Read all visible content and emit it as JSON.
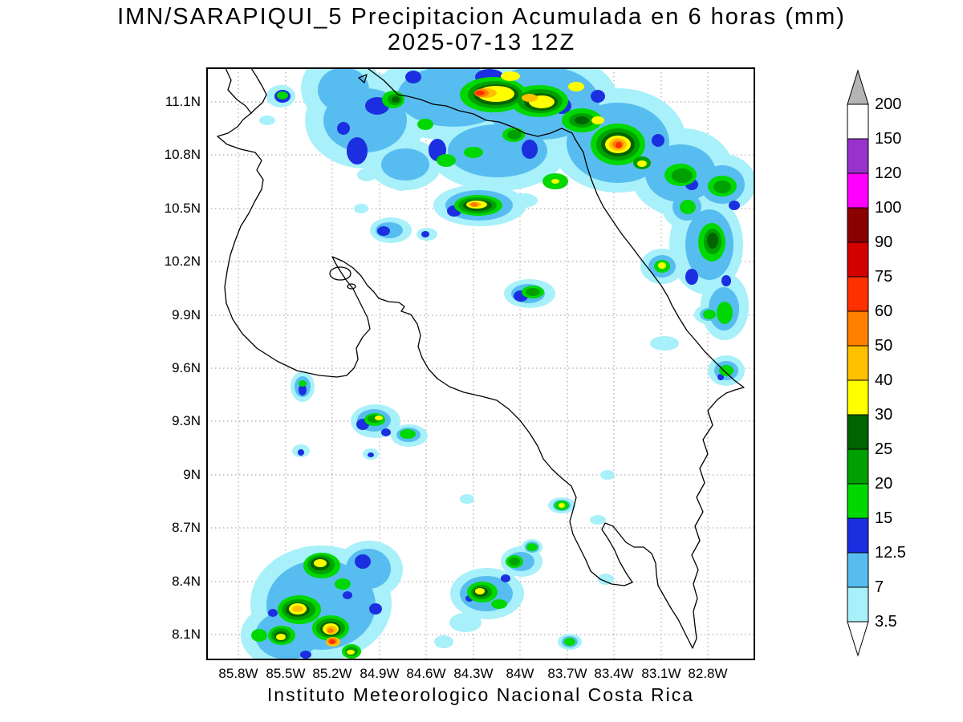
{
  "title": {
    "line1": "IMN/SARAPIQUI_5 Precipitacion Acumulada en 6 horas (mm)",
    "line2": "2025-07-13 12Z"
  },
  "footer": "Instituto Meteorologico Nacional Costa Rica",
  "chart_data": {
    "type": "heatmap",
    "subtype": "filled-contour precipitation map over Costa Rica",
    "title": "IMN/SARAPIQUI_5 Precipitacion Acumulada en 6 horas (mm)",
    "subtitle": "2025-07-13 12Z",
    "units": "mm",
    "lat_ticks": [
      "11.1N",
      "10.8N",
      "10.5N",
      "10.2N",
      "9.9N",
      "9.6N",
      "9.3N",
      "9N",
      "8.7N",
      "8.4N",
      "8.1N"
    ],
    "lon_ticks": [
      "85.8W",
      "85.5W",
      "85.2W",
      "84.9W",
      "84.6W",
      "84.3W",
      "84W",
      "83.7W",
      "83.4W",
      "83.1W",
      "82.8W"
    ],
    "lat_range_deg_n": [
      7.95,
      11.3
    ],
    "lon_range_deg_w": [
      86.0,
      82.5
    ],
    "grid": "dotted",
    "legend_position": "right",
    "colorbar": {
      "levels_mm": [
        3.5,
        7,
        12.5,
        15,
        20,
        25,
        30,
        40,
        50,
        60,
        75,
        90,
        100,
        120,
        150,
        200
      ],
      "labels_top_to_bottom": [
        "200",
        "150",
        "120",
        "100",
        "90",
        "75",
        "60",
        "50",
        "40",
        "30",
        "25",
        "20",
        "15",
        "12.5",
        "7",
        "3.5"
      ],
      "colors_low_to_high": [
        "#a8f0fa",
        "#57bdf0",
        "#1b2fe0",
        "#00d800",
        "#00a000",
        "#006400",
        "#ffff00",
        "#ffc000",
        "#ff8000",
        "#ff3000",
        "#d40000",
        "#8b0000",
        "#ff00ff",
        "#9932cc",
        "#ffffff"
      ],
      "under_color": "#ffffff",
      "over_color": "#b4b4b4",
      "outline_color": "#000000"
    },
    "description": "Heaviest 6-h accumulations (40-90 mm cores) stretch along northern Costa Rica and the Caribbean slope; scattered 3.5-60 mm cells over the Pacific waters to the south and southwest"
  }
}
